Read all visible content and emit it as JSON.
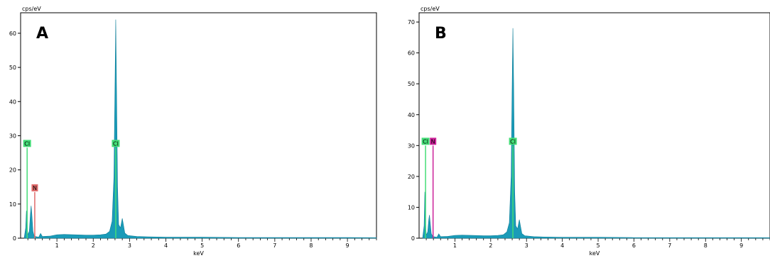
{
  "chart_data": [
    {
      "type": "area",
      "panel_letter": "A",
      "ylabel": "cps/eV",
      "xlabel": "keV",
      "xlim": [
        0,
        9.8
      ],
      "ylim": [
        0,
        66
      ],
      "x_ticks": [
        1,
        2,
        3,
        4,
        5,
        6,
        7,
        8,
        9
      ],
      "y_ticks": [
        0,
        10,
        20,
        30,
        40,
        50,
        60
      ],
      "colors": {
        "spectrum": "#1a9bb8",
        "cl": "#44dd77",
        "n": "#e06b6b"
      },
      "element_markers": [
        {
          "label": "Cl",
          "x": 0.18,
          "peak_height": 26.5
        },
        {
          "label": "N",
          "x": 0.39,
          "peak_height": 13.5
        },
        {
          "label": "Cl",
          "x": 2.62,
          "peak_height": 26.5
        }
      ],
      "series": [
        {
          "points": [
            [
              0.1,
              0.2
            ],
            [
              0.14,
              3
            ],
            [
              0.16,
              8
            ],
            [
              0.18,
              4
            ],
            [
              0.2,
              1
            ],
            [
              0.24,
              2
            ],
            [
              0.27,
              7
            ],
            [
              0.29,
              9.5
            ],
            [
              0.31,
              7
            ],
            [
              0.34,
              2
            ],
            [
              0.37,
              0.8
            ],
            [
              0.4,
              0.5
            ],
            [
              0.5,
              0.3
            ],
            [
              0.55,
              1.4
            ],
            [
              0.6,
              0.5
            ],
            [
              0.8,
              0.6
            ],
            [
              1.0,
              1.0
            ],
            [
              1.2,
              1.1
            ],
            [
              1.5,
              1.0
            ],
            [
              1.8,
              0.9
            ],
            [
              2.0,
              0.9
            ],
            [
              2.2,
              1.0
            ],
            [
              2.35,
              1.2
            ],
            [
              2.45,
              2.0
            ],
            [
              2.52,
              5
            ],
            [
              2.57,
              18
            ],
            [
              2.6,
              45
            ],
            [
              2.62,
              64
            ],
            [
              2.64,
              45
            ],
            [
              2.67,
              15
            ],
            [
              2.7,
              4
            ],
            [
              2.75,
              3
            ],
            [
              2.8,
              5.8
            ],
            [
              2.83,
              4
            ],
            [
              2.87,
              1.5
            ],
            [
              2.95,
              0.8
            ],
            [
              3.2,
              0.5
            ],
            [
              3.5,
              0.4
            ],
            [
              4.0,
              0.3
            ],
            [
              5.0,
              0.3
            ],
            [
              6.0,
              0.2
            ],
            [
              7.0,
              0.2
            ],
            [
              8.0,
              0.2
            ],
            [
              9.0,
              0.2
            ],
            [
              9.8,
              0.15
            ]
          ]
        }
      ]
    },
    {
      "type": "area",
      "panel_letter": "B",
      "ylabel": "cps/eV",
      "xlabel": "keV",
      "xlim": [
        0,
        9.8
      ],
      "ylim": [
        0,
        73
      ],
      "x_ticks": [
        1,
        2,
        3,
        4,
        5,
        6,
        7,
        8,
        9
      ],
      "y_ticks": [
        0,
        10,
        20,
        30,
        40,
        50,
        60,
        70
      ],
      "colors": {
        "spectrum": "#1a9bb8",
        "cl": "#44dd77",
        "n": "#cc2299"
      },
      "element_markers": [
        {
          "label": "Cl",
          "x": 0.18,
          "peak_height": 30
        },
        {
          "label": "N",
          "x": 0.39,
          "peak_height": 30
        },
        {
          "label": "Cl",
          "x": 2.62,
          "peak_height": 30
        }
      ],
      "series": [
        {
          "points": [
            [
              0.1,
              0.2
            ],
            [
              0.14,
              4
            ],
            [
              0.16,
              15
            ],
            [
              0.18,
              5
            ],
            [
              0.2,
              1
            ],
            [
              0.24,
              2
            ],
            [
              0.27,
              6
            ],
            [
              0.29,
              7.5
            ],
            [
              0.31,
              5
            ],
            [
              0.34,
              1.5
            ],
            [
              0.37,
              0.8
            ],
            [
              0.4,
              0.5
            ],
            [
              0.5,
              0.3
            ],
            [
              0.55,
              1.4
            ],
            [
              0.6,
              0.5
            ],
            [
              0.8,
              0.6
            ],
            [
              1.0,
              0.9
            ],
            [
              1.2,
              1.0
            ],
            [
              1.5,
              0.9
            ],
            [
              1.8,
              0.8
            ],
            [
              2.0,
              0.8
            ],
            [
              2.2,
              0.9
            ],
            [
              2.35,
              1.1
            ],
            [
              2.45,
              2.0
            ],
            [
              2.52,
              5
            ],
            [
              2.57,
              20
            ],
            [
              2.6,
              50
            ],
            [
              2.62,
              68
            ],
            [
              2.64,
              50
            ],
            [
              2.67,
              15
            ],
            [
              2.7,
              4
            ],
            [
              2.75,
              3
            ],
            [
              2.8,
              6
            ],
            [
              2.83,
              4
            ],
            [
              2.87,
              1.5
            ],
            [
              2.95,
              0.8
            ],
            [
              3.2,
              0.5
            ],
            [
              3.5,
              0.4
            ],
            [
              4.0,
              0.3
            ],
            [
              5.0,
              0.3
            ],
            [
              6.0,
              0.2
            ],
            [
              7.0,
              0.2
            ],
            [
              8.0,
              0.2
            ],
            [
              9.0,
              0.2
            ],
            [
              9.8,
              0.15
            ]
          ]
        }
      ]
    }
  ]
}
